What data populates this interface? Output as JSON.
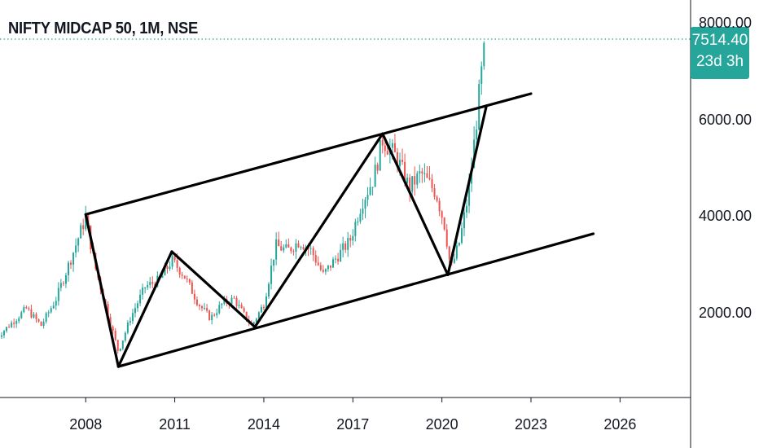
{
  "header": {
    "title": "NIFTY MIDCAP 50, 1M, NSE"
  },
  "price_tag": {
    "value": "7514.40",
    "countdown": "23d 3h"
  },
  "colors": {
    "up": "#26a69a",
    "down": "#ef5350",
    "tag": "#26a69a",
    "drawing": "#000000"
  },
  "chart_data": {
    "type": "candlestick",
    "title": "NIFTY MIDCAP 50, 1M, NSE",
    "ylim": [
      0,
      8300
    ],
    "x_range": [
      2005.0,
      2029.0
    ],
    "y_ticks": [
      "8000.00",
      "6000.00",
      "4000.00",
      "2000.00"
    ],
    "y_tick_values": [
      8000,
      6000,
      4000,
      2000
    ],
    "x_ticks": [
      "2008",
      "2011",
      "2014",
      "2017",
      "2020",
      "2023",
      "2026"
    ],
    "x_tick_values": [
      2008,
      2011,
      2014,
      2017,
      2020,
      2023,
      2026
    ],
    "last_price": 7514.4,
    "anchors": [
      [
        2005.0,
        1500
      ],
      [
        2006.0,
        2100
      ],
      [
        2006.5,
        1750
      ],
      [
        2007.0,
        2300
      ],
      [
        2007.6,
        3300
      ],
      [
        2008.0,
        4000
      ],
      [
        2008.3,
        3000
      ],
      [
        2008.7,
        2100
      ],
      [
        2009.1,
        1200
      ],
      [
        2009.5,
        1900
      ],
      [
        2010.0,
        2550
      ],
      [
        2010.5,
        2700
      ],
      [
        2010.9,
        3100
      ],
      [
        2011.3,
        2800
      ],
      [
        2011.8,
        2200
      ],
      [
        2012.2,
        1900
      ],
      [
        2012.6,
        2200
      ],
      [
        2013.0,
        2300
      ],
      [
        2013.3,
        2000
      ],
      [
        2013.6,
        1750
      ],
      [
        2014.0,
        2200
      ],
      [
        2014.4,
        3400
      ],
      [
        2014.8,
        3300
      ],
      [
        2015.2,
        3500
      ],
      [
        2015.6,
        3300
      ],
      [
        2016.0,
        2800
      ],
      [
        2016.5,
        3200
      ],
      [
        2016.9,
        3500
      ],
      [
        2017.3,
        4300
      ],
      [
        2017.7,
        4800
      ],
      [
        2018.0,
        5600
      ],
      [
        2018.5,
        5200
      ],
      [
        2018.9,
        4600
      ],
      [
        2019.3,
        4900
      ],
      [
        2019.8,
        4500
      ],
      [
        2020.1,
        3800
      ],
      [
        2020.3,
        2900
      ],
      [
        2020.6,
        3500
      ],
      [
        2020.9,
        4500
      ],
      [
        2021.1,
        5600
      ],
      [
        2021.3,
        6800
      ],
      [
        2021.45,
        7514
      ]
    ],
    "trendlines": [
      {
        "name": "upper-channel",
        "points": [
          [
            2008.0,
            4050
          ],
          [
            2009.1,
            900
          ]
        ]
      },
      {
        "name": "wave-1",
        "points": [
          [
            2009.1,
            900
          ],
          [
            2010.9,
            3280
          ]
        ]
      },
      {
        "name": "wave-2",
        "points": [
          [
            2010.9,
            3280
          ],
          [
            2013.7,
            1720
          ]
        ]
      },
      {
        "name": "wave-3",
        "points": [
          [
            2013.7,
            1720
          ],
          [
            2018.0,
            5720
          ]
        ]
      },
      {
        "name": "wave-4",
        "points": [
          [
            2018.0,
            5720
          ],
          [
            2020.2,
            2800
          ]
        ]
      },
      {
        "name": "wave-5",
        "points": [
          [
            2020.2,
            2800
          ],
          [
            2021.5,
            6300
          ]
        ]
      },
      {
        "name": "channel-top",
        "points": [
          [
            2008.0,
            4050
          ],
          [
            2023.0,
            6550
          ]
        ]
      },
      {
        "name": "channel-bottom",
        "points": [
          [
            2009.1,
            900
          ],
          [
            2025.1,
            3650
          ]
        ]
      }
    ]
  }
}
